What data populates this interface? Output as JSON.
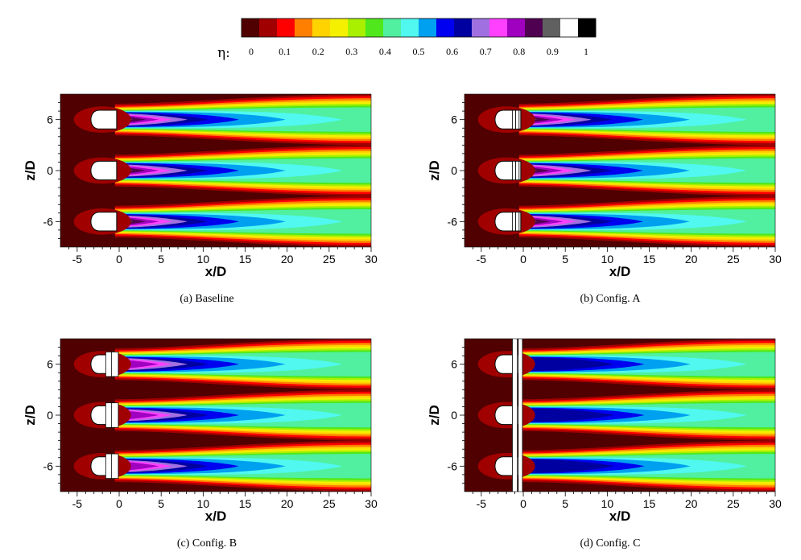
{
  "colorbar": {
    "symbol": "η:",
    "tick_labels": [
      "0",
      "0.1",
      "0.2",
      "0.3",
      "0.4",
      "0.5",
      "0.6",
      "0.7",
      "0.8",
      "0.9",
      "1"
    ],
    "colors": [
      "#500000",
      "#a00000",
      "#ff0000",
      "#ff7f00",
      "#ffd300",
      "#f4f000",
      "#a8f000",
      "#50e81c",
      "#50f0a0",
      "#50f8f0",
      "#00a0f0",
      "#0000f0",
      "#0000a0",
      "#a070e0",
      "#ff40ff",
      "#a000c0",
      "#500050",
      "#606060",
      "#ffffff",
      "#000000"
    ]
  },
  "chart_data": [
    {
      "type": "heatmap",
      "panel": "a",
      "caption": "(a)  Baseline",
      "xlabel": "x/D",
      "ylabel": "z/D",
      "xlim": [
        -7,
        30
      ],
      "ylim": [
        -9,
        9
      ],
      "x_ticks": [
        "-5",
        "0",
        "5",
        "10",
        "15",
        "20",
        "25",
        "30"
      ],
      "y_ticks": [
        "6",
        "0",
        "-6"
      ],
      "hole_centers_z": [
        6,
        0,
        -6
      ],
      "configuration": "baseline",
      "eta_near_hole": 0.9,
      "eta_far_field": 0.4
    },
    {
      "type": "heatmap",
      "panel": "b",
      "caption": "(b)  Config. A",
      "xlabel": "x/D",
      "ylabel": "z/D",
      "xlim": [
        -7,
        30
      ],
      "ylim": [
        -9,
        9
      ],
      "x_ticks": [
        "-5",
        "0",
        "5",
        "10",
        "15",
        "20",
        "25",
        "30"
      ],
      "y_ticks": [
        "6",
        "0",
        "-6"
      ],
      "hole_centers_z": [
        6,
        0,
        -6
      ],
      "configuration": "Config. A",
      "eta_near_hole": 0.9,
      "eta_far_field": 0.35
    },
    {
      "type": "heatmap",
      "panel": "c",
      "caption": "(c)  Config. B",
      "xlabel": "x/D",
      "ylabel": "z/D",
      "xlim": [
        -7,
        30
      ],
      "ylim": [
        -9,
        9
      ],
      "x_ticks": [
        "-5",
        "0",
        "5",
        "10",
        "15",
        "20",
        "25",
        "30"
      ],
      "y_ticks": [
        "6",
        "0",
        "-6"
      ],
      "hole_centers_z": [
        6,
        0,
        -6
      ],
      "configuration": "Config. B",
      "eta_near_hole": 0.75,
      "eta_far_field": 0.4
    },
    {
      "type": "heatmap",
      "panel": "d",
      "caption": "(d)  Config. C",
      "xlabel": "x/D",
      "ylabel": "z/D",
      "xlim": [
        -7,
        30
      ],
      "ylim": [
        -9,
        9
      ],
      "x_ticks": [
        "-5",
        "0",
        "5",
        "10",
        "15",
        "20",
        "25",
        "30"
      ],
      "y_ticks": [
        "6",
        "0",
        "-6"
      ],
      "hole_centers_z": [
        6,
        0,
        -6
      ],
      "configuration": "Config. C",
      "eta_near_hole": 0.6,
      "eta_far_field": 0.35
    }
  ]
}
